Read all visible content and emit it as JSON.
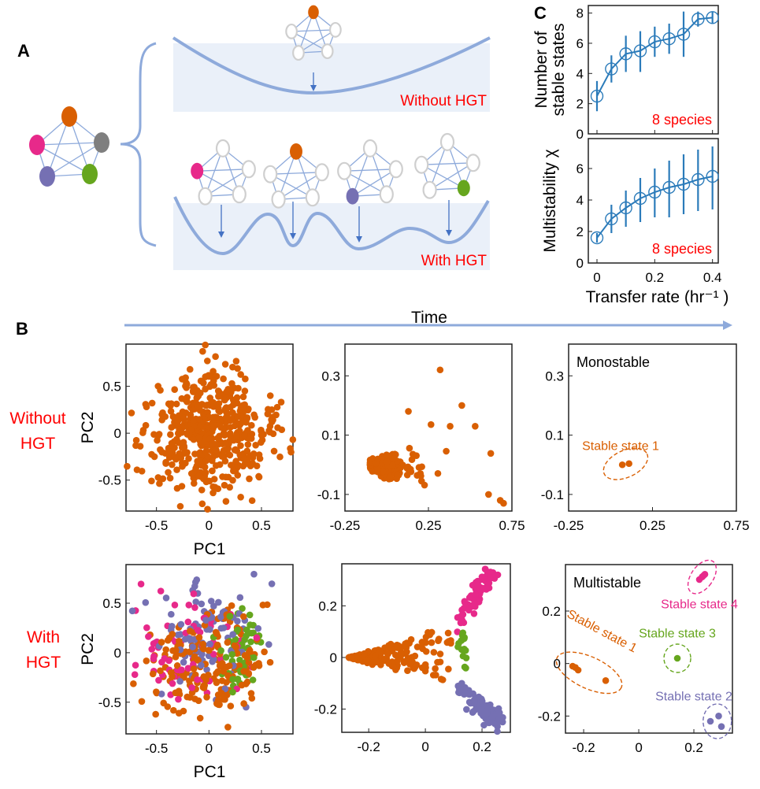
{
  "colors": {
    "orange": "#d95f02",
    "purple": "#7570b3",
    "pink": "#e7298a",
    "green": "#66a61e",
    "gray": "#7f7f7f",
    "network_edge": "#8eaadb",
    "basin_fill": "#eaf0f9",
    "basin_line": "#8eaadb",
    "line_series": "#2b7bba",
    "label_red": "#ff0000"
  },
  "panel_a": {
    "letter": "A",
    "without_label": "Without HGT",
    "with_label": "With HGT"
  },
  "panel_b": {
    "letter": "B",
    "time_label": "Time",
    "row_without": [
      "Without",
      "HGT"
    ],
    "row_with": [
      "With",
      "HGT"
    ]
  },
  "panel_c": {
    "letter": "C"
  },
  "chart_data": [
    {
      "id": "c_top",
      "type": "line",
      "ylabel": [
        "Number of",
        "stable states"
      ],
      "annotation": "8 species",
      "x": [
        0,
        0.05,
        0.1,
        0.15,
        0.2,
        0.25,
        0.3,
        0.35,
        0.4
      ],
      "y": [
        2.5,
        4.3,
        5.3,
        5.5,
        6.1,
        6.3,
        6.6,
        7.6,
        7.7
      ],
      "y_low": [
        1.5,
        3.4,
        4.1,
        4.1,
        5.1,
        5.3,
        5.1,
        7.1,
        7.3
      ],
      "y_high": [
        3.5,
        5.2,
        6.5,
        6.8,
        7.1,
        7.3,
        8.1,
        8.1,
        8.1
      ],
      "xlim": [
        -0.03,
        0.42
      ],
      "ylim": [
        0,
        8.5
      ],
      "yticks": [
        0,
        2,
        4,
        6,
        8
      ],
      "xticks": [
        0,
        0.2,
        0.4
      ],
      "show_xtick_labels": false
    },
    {
      "id": "c_bottom",
      "type": "line",
      "ylabel": [
        "Multistability χ"
      ],
      "xlabel": "Transfer rate (hr⁻¹ )",
      "annotation": "8 species",
      "x": [
        0,
        0.05,
        0.1,
        0.15,
        0.2,
        0.25,
        0.3,
        0.35,
        0.4
      ],
      "y": [
        1.6,
        2.8,
        3.5,
        4.1,
        4.5,
        4.8,
        5.0,
        5.3,
        5.5
      ],
      "y_low": [
        1.3,
        1.9,
        2.3,
        2.6,
        2.9,
        2.9,
        3.1,
        3.3,
        3.4
      ],
      "y_high": [
        1.9,
        3.7,
        4.6,
        5.4,
        6.0,
        6.5,
        6.9,
        7.2,
        7.4
      ],
      "xlim": [
        -0.03,
        0.42
      ],
      "ylim": [
        0,
        7.9
      ],
      "yticks": [
        0,
        2,
        4,
        6
      ],
      "xticks": [
        0,
        0.2,
        0.4
      ],
      "show_xtick_labels": true
    },
    {
      "id": "b_without_initial",
      "type": "scatter",
      "xlabel": "PC1",
      "ylabel": "PC2",
      "xlim": [
        -0.79,
        0.8
      ],
      "ylim": [
        -0.83,
        0.95
      ],
      "xticks": [
        -0.5,
        0,
        0.5
      ],
      "yticks": [
        -0.5,
        0,
        0.5
      ],
      "series": [
        {
          "color": "#d95f02"
        }
      ]
    },
    {
      "id": "b_without_mid",
      "type": "scatter",
      "xlim": [
        -0.25,
        0.75
      ],
      "ylim": [
        -0.156,
        0.407
      ],
      "xticks": [
        -0.25,
        0.25,
        0.75
      ],
      "yticks": [
        -0.1,
        0.1,
        0.3
      ],
      "series": [
        {
          "color": "#d95f02"
        }
      ]
    },
    {
      "id": "b_without_final",
      "type": "scatter",
      "annotation": "Monostable",
      "xlim": [
        -0.25,
        0.75
      ],
      "ylim": [
        -0.156,
        0.407
      ],
      "xticks": [
        -0.25,
        0.25,
        0.75
      ],
      "yticks": [
        -0.1,
        0.1,
        0.3
      ],
      "series": [
        {
          "name": "Stable state 1",
          "color": "#d95f02",
          "points": [
            [
              0.07,
              0.0
            ],
            [
              0.11,
              0.004
            ]
          ]
        }
      ]
    },
    {
      "id": "b_with_initial",
      "type": "scatter",
      "xlabel": "PC1",
      "ylabel": "PC2",
      "xlim": [
        -0.79,
        0.8
      ],
      "ylim": [
        -0.82,
        0.89
      ],
      "xticks": [
        -0.5,
        0,
        0.5
      ],
      "yticks": [
        -0.5,
        0,
        0.5
      ],
      "series": [
        {
          "color": "#d95f02"
        },
        {
          "color": "#7570b3"
        },
        {
          "color": "#e7298a"
        },
        {
          "color": "#66a61e"
        }
      ]
    },
    {
      "id": "b_with_mid",
      "type": "scatter",
      "xlim": [
        -0.295,
        0.3
      ],
      "ylim": [
        -0.29,
        0.363
      ],
      "xticks": [
        -0.2,
        0,
        0.2
      ],
      "yticks": [
        -0.2,
        0,
        0.2
      ],
      "series": [
        {
          "color": "#d95f02"
        },
        {
          "color": "#7570b3"
        },
        {
          "color": "#e7298a"
        },
        {
          "color": "#66a61e"
        }
      ]
    },
    {
      "id": "b_with_final",
      "type": "scatter",
      "annotation": "Multistable",
      "xlim": [
        -0.266,
        0.34
      ],
      "ylim": [
        -0.265,
        0.377
      ],
      "xticks": [
        -0.2,
        0,
        0.2
      ],
      "yticks": [
        -0.2,
        0,
        0.2
      ],
      "series": [
        {
          "name": "Stable state 1",
          "color": "#d95f02",
          "points": [
            [
              -0.24,
              -0.01
            ],
            [
              -0.23,
              -0.015
            ],
            [
              -0.22,
              -0.025
            ],
            [
              -0.12,
              -0.065
            ]
          ]
        },
        {
          "name": "Stable state 2",
          "color": "#7570b3",
          "points": [
            [
              0.26,
              -0.22
            ],
            [
              0.29,
              -0.2
            ],
            [
              0.3,
              -0.24
            ]
          ]
        },
        {
          "name": "Stable state 3",
          "color": "#66a61e",
          "points": [
            [
              0.14,
              0.02
            ]
          ]
        },
        {
          "name": "Stable state 4",
          "color": "#e7298a",
          "points": [
            [
              0.22,
              0.32
            ],
            [
              0.23,
              0.33
            ],
            [
              0.24,
              0.34
            ],
            [
              0.235,
              0.335
            ]
          ]
        }
      ]
    }
  ]
}
